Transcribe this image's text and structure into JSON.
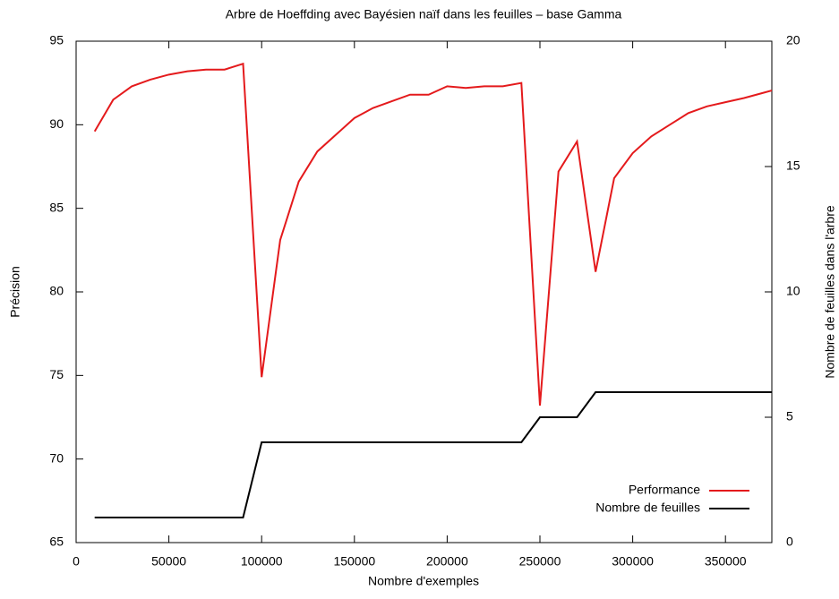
{
  "chart_data": {
    "type": "line",
    "title": "Arbre de Hoeffding avec Bayésien naïf dans les feuilles – base Gamma",
    "x_label": "Nombre d'exemples",
    "y_label": "Précision",
    "y2_label": "Nombre de feuilles dans l'arbre",
    "x": [
      10000,
      20000,
      30000,
      40000,
      50000,
      60000,
      70000,
      80000,
      90000,
      100000,
      110000,
      120000,
      130000,
      140000,
      150000,
      160000,
      170000,
      180000,
      190000,
      200000,
      210000,
      220000,
      230000,
      240000,
      250000,
      260000,
      270000,
      280000,
      290000,
      300000,
      310000,
      320000,
      330000,
      340000,
      350000,
      360000,
      370000,
      375000
    ],
    "series": [
      {
        "name": "Performance",
        "color": "#e41a1c",
        "values": [
          89.6,
          91.5,
          92.3,
          92.7,
          93.0,
          93.2,
          93.3,
          93.3,
          93.65,
          74.9,
          83.1,
          86.6,
          88.4,
          89.4,
          90.4,
          91.0,
          91.4,
          91.8,
          91.8,
          92.3,
          92.2,
          92.3,
          92.3,
          92.5,
          73.2,
          87.2,
          89.0,
          81.2,
          86.8,
          88.3,
          89.3,
          90.0,
          90.7,
          91.1,
          91.35,
          91.6,
          91.9,
          92.05
        ]
      },
      {
        "name": "Nombre de feuilles",
        "color": "#000000",
        "axis": "y2",
        "values": [
          1,
          1,
          1,
          1,
          1,
          1,
          1,
          1,
          1,
          4,
          4,
          4,
          4,
          4,
          4,
          4,
          4,
          4,
          4,
          4,
          4,
          4,
          4,
          4,
          5,
          5,
          5,
          6,
          6,
          6,
          6,
          6,
          6,
          6,
          6,
          6,
          6,
          6
        ]
      }
    ],
    "xlim": [
      0,
      375000
    ],
    "xticks": [
      0,
      50000,
      100000,
      150000,
      200000,
      250000,
      300000,
      350000
    ],
    "ylim": [
      65,
      95
    ],
    "yticks": [
      65,
      70,
      75,
      80,
      85,
      90,
      95
    ],
    "y2lim": [
      0,
      20
    ],
    "y2ticks": [
      0,
      5,
      10,
      15,
      20
    ],
    "legend": "bottom right"
  }
}
